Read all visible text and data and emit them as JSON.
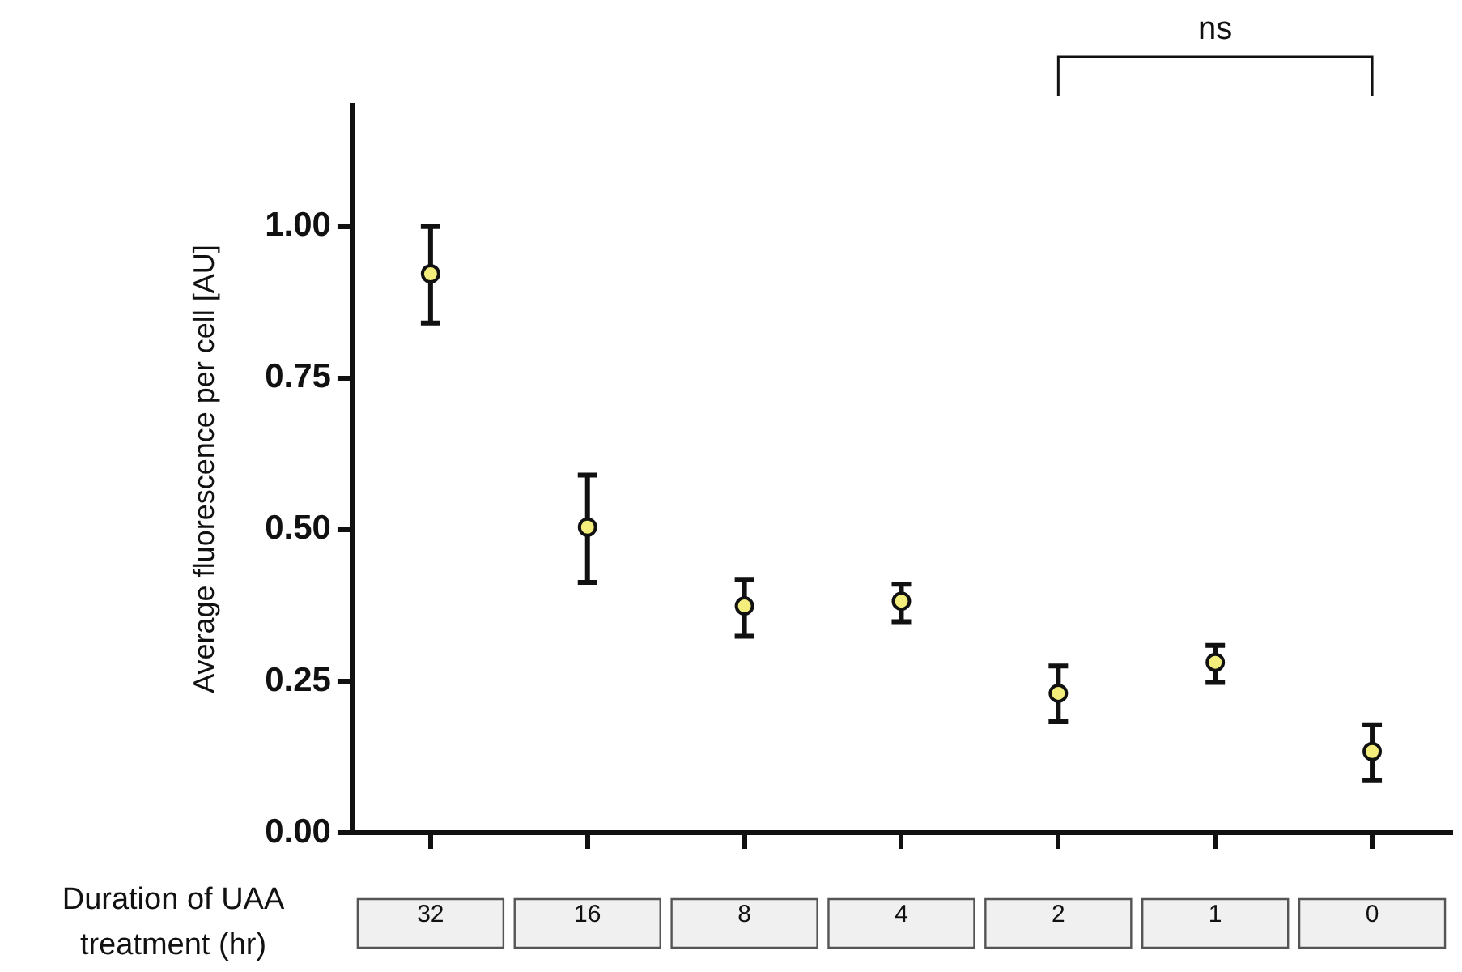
{
  "chart_data": {
    "type": "scatter",
    "ylabel": "Average fluorescence per cell [AU]",
    "xlabel": "Duration of UAA treatment (hr)",
    "categories": [
      "32",
      "16",
      "8",
      "4",
      "2",
      "1",
      "0"
    ],
    "series": [
      {
        "color": "#f3ee7c",
        "values": [
          0.922,
          0.504,
          0.374,
          0.382,
          0.23,
          0.281,
          0.134
        ],
        "errors": [
          [
            0.841,
            1.0
          ],
          [
            0.413,
            0.59
          ],
          [
            0.324,
            0.418
          ],
          [
            0.348,
            0.41
          ],
          [
            0.183,
            0.275
          ],
          [
            0.248,
            0.309
          ],
          [
            0.086,
            0.178
          ]
        ]
      }
    ],
    "ylim": [
      0,
      1.2
    ],
    "yticks": [
      {
        "value": 0,
        "label": "0.00"
      },
      {
        "value": 0.25,
        "label": "0.25"
      },
      {
        "value": 0.5,
        "label": "0.50"
      },
      {
        "value": 0.75,
        "label": "0.75"
      },
      {
        "value": 1,
        "label": "1.00"
      }
    ],
    "annotations": [
      "ns"
    ],
    "grid": false,
    "legend": false,
    "marker": "circle"
  }
}
